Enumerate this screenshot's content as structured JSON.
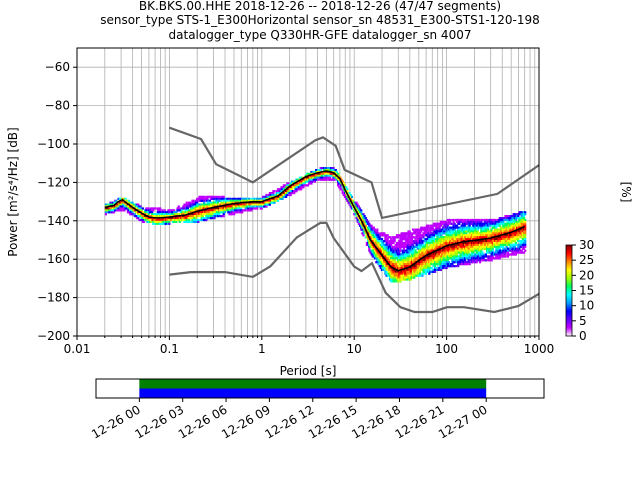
{
  "title_lines": [
    "BK.BKS.00.HHE   2018-12-26 -- 2018-12-26  (47/47 segments)",
    "sensor_type STS-1_E300Horizontal sensor_sn 48531_E300-STS1-120-198",
    "datalogger_type Q330HR-GFE datalogger_sn 4007"
  ],
  "chart_data": {
    "type": "heatmap",
    "xlabel": "Period [s]",
    "ylabel": "Power [m²/s⁴/Hz] [dB]",
    "xscale": "log",
    "xlim": [
      0.01,
      1000
    ],
    "ylim": [
      -200,
      -50
    ],
    "xtick_labels": [
      "0.01",
      "0.1",
      "1",
      "10",
      "100",
      "1000"
    ],
    "xtick_values": [
      0.01,
      0.1,
      1,
      10,
      100,
      1000
    ],
    "ytick_values": [
      -60,
      -80,
      -100,
      -120,
      -140,
      -160,
      -180,
      -200
    ],
    "grid": true,
    "colorbar": {
      "label": "[%]",
      "ticks": [
        0,
        5,
        10,
        15,
        20,
        25,
        30
      ],
      "range": [
        0,
        30
      ],
      "colormap": [
        "#ffffff",
        "#c000ff",
        "#6000ff",
        "#0000ff",
        "#00a0ff",
        "#00ffff",
        "#00ff60",
        "#a0ff00",
        "#ffff00",
        "#ff8000",
        "#ff0000",
        "#800000"
      ]
    },
    "noise_models": [
      {
        "name": "NHNM",
        "x": [
          0.1,
          0.22,
          0.32,
          0.8,
          3.8,
          4.6,
          6.3,
          7.9,
          15.4,
          20,
          354.8,
          1000
        ],
        "y": [
          -91.5,
          -97.4,
          -110.5,
          -120,
          -98,
          -96.5,
          -101,
          -113.5,
          -120,
          -138.5,
          -126,
          -111
        ]
      },
      {
        "name": "NLNM",
        "x": [
          0.1,
          0.17,
          0.4,
          0.8,
          1.24,
          2.4,
          4.3,
          5,
          6,
          10,
          12,
          15.6,
          21.9,
          31.6,
          45,
          70,
          101,
          154,
          328,
          600,
          1000
        ],
        "y": [
          -168,
          -166.7,
          -166.7,
          -169.2,
          -163.7,
          -148.6,
          -141.1,
          -141.1,
          -149,
          -163.8,
          -166.2,
          -162.1,
          -177.5,
          -185,
          -187.5,
          -187.5,
          -185,
          -185,
          -187.5,
          -184.4,
          -178
        ]
      }
    ],
    "mean_curve": {
      "name": "mean",
      "x": [
        0.02,
        0.025,
        0.028,
        0.031,
        0.035,
        0.04,
        0.05,
        0.06,
        0.07,
        0.08,
        0.1,
        0.15,
        0.2,
        0.3,
        0.5,
        0.8,
        1.0,
        1.5,
        2.0,
        3.0,
        4.0,
        5.0,
        6.0,
        7.0,
        8.0,
        10.0,
        12.0,
        15.0,
        20.0,
        25.0,
        30.0,
        40.0,
        60.0,
        100.0,
        150.0,
        300.0,
        500.0,
        700.0
      ],
      "y": [
        -133,
        -132,
        -130,
        -129,
        -131,
        -133,
        -136,
        -138,
        -138.5,
        -138.5,
        -138,
        -137,
        -135,
        -133,
        -131,
        -130,
        -130,
        -127,
        -122,
        -117,
        -115,
        -114,
        -115,
        -118,
        -124,
        -133,
        -140,
        -150,
        -158,
        -164,
        -166,
        -164,
        -158,
        -153,
        -151,
        -149,
        -146,
        -143
      ]
    },
    "distribution": [
      {
        "x": 0.02,
        "ylo": -136,
        "yhi": -131
      },
      {
        "x": 0.03,
        "ylo": -134,
        "yhi": -127
      },
      {
        "x": 0.05,
        "ylo": -140,
        "yhi": -132
      },
      {
        "x": 0.08,
        "ylo": -142,
        "yhi": -133
      },
      {
        "x": 0.1,
        "ylo": -141,
        "yhi": -134
      },
      {
        "x": 0.2,
        "ylo": -140,
        "yhi": -127
      },
      {
        "x": 0.3,
        "ylo": -138,
        "yhi": -126
      },
      {
        "x": 0.5,
        "ylo": -136,
        "yhi": -128
      },
      {
        "x": 1.0,
        "ylo": -133,
        "yhi": -127
      },
      {
        "x": 2.0,
        "ylo": -126,
        "yhi": -119
      },
      {
        "x": 4.0,
        "ylo": -118,
        "yhi": -112
      },
      {
        "x": 6.0,
        "ylo": -118,
        "yhi": -112
      },
      {
        "x": 10.0,
        "ylo": -137,
        "yhi": -129
      },
      {
        "x": 15.0,
        "ylo": -158,
        "yhi": -142
      },
      {
        "x": 25.0,
        "ylo": -172,
        "yhi": -148
      },
      {
        "x": 40.0,
        "ylo": -170,
        "yhi": -144
      },
      {
        "x": 100.0,
        "ylo": -164,
        "yhi": -139
      },
      {
        "x": 300.0,
        "ylo": -160,
        "yhi": -139
      },
      {
        "x": 700.0,
        "ylo": -156,
        "yhi": -134
      }
    ],
    "coverage": {
      "tick_labels": [
        "12-26 00",
        "12-26 03",
        "12-26 06",
        "12-26 09",
        "12-26 12",
        "12-26 15",
        "12-26 18",
        "12-26 21",
        "12-27 00"
      ],
      "start_hour": -3,
      "end_hour": 28,
      "data_start_hour": 0,
      "data_end_hour": 24,
      "colors": {
        "data": "#0000ff",
        "gaps": "#008000"
      }
    }
  }
}
